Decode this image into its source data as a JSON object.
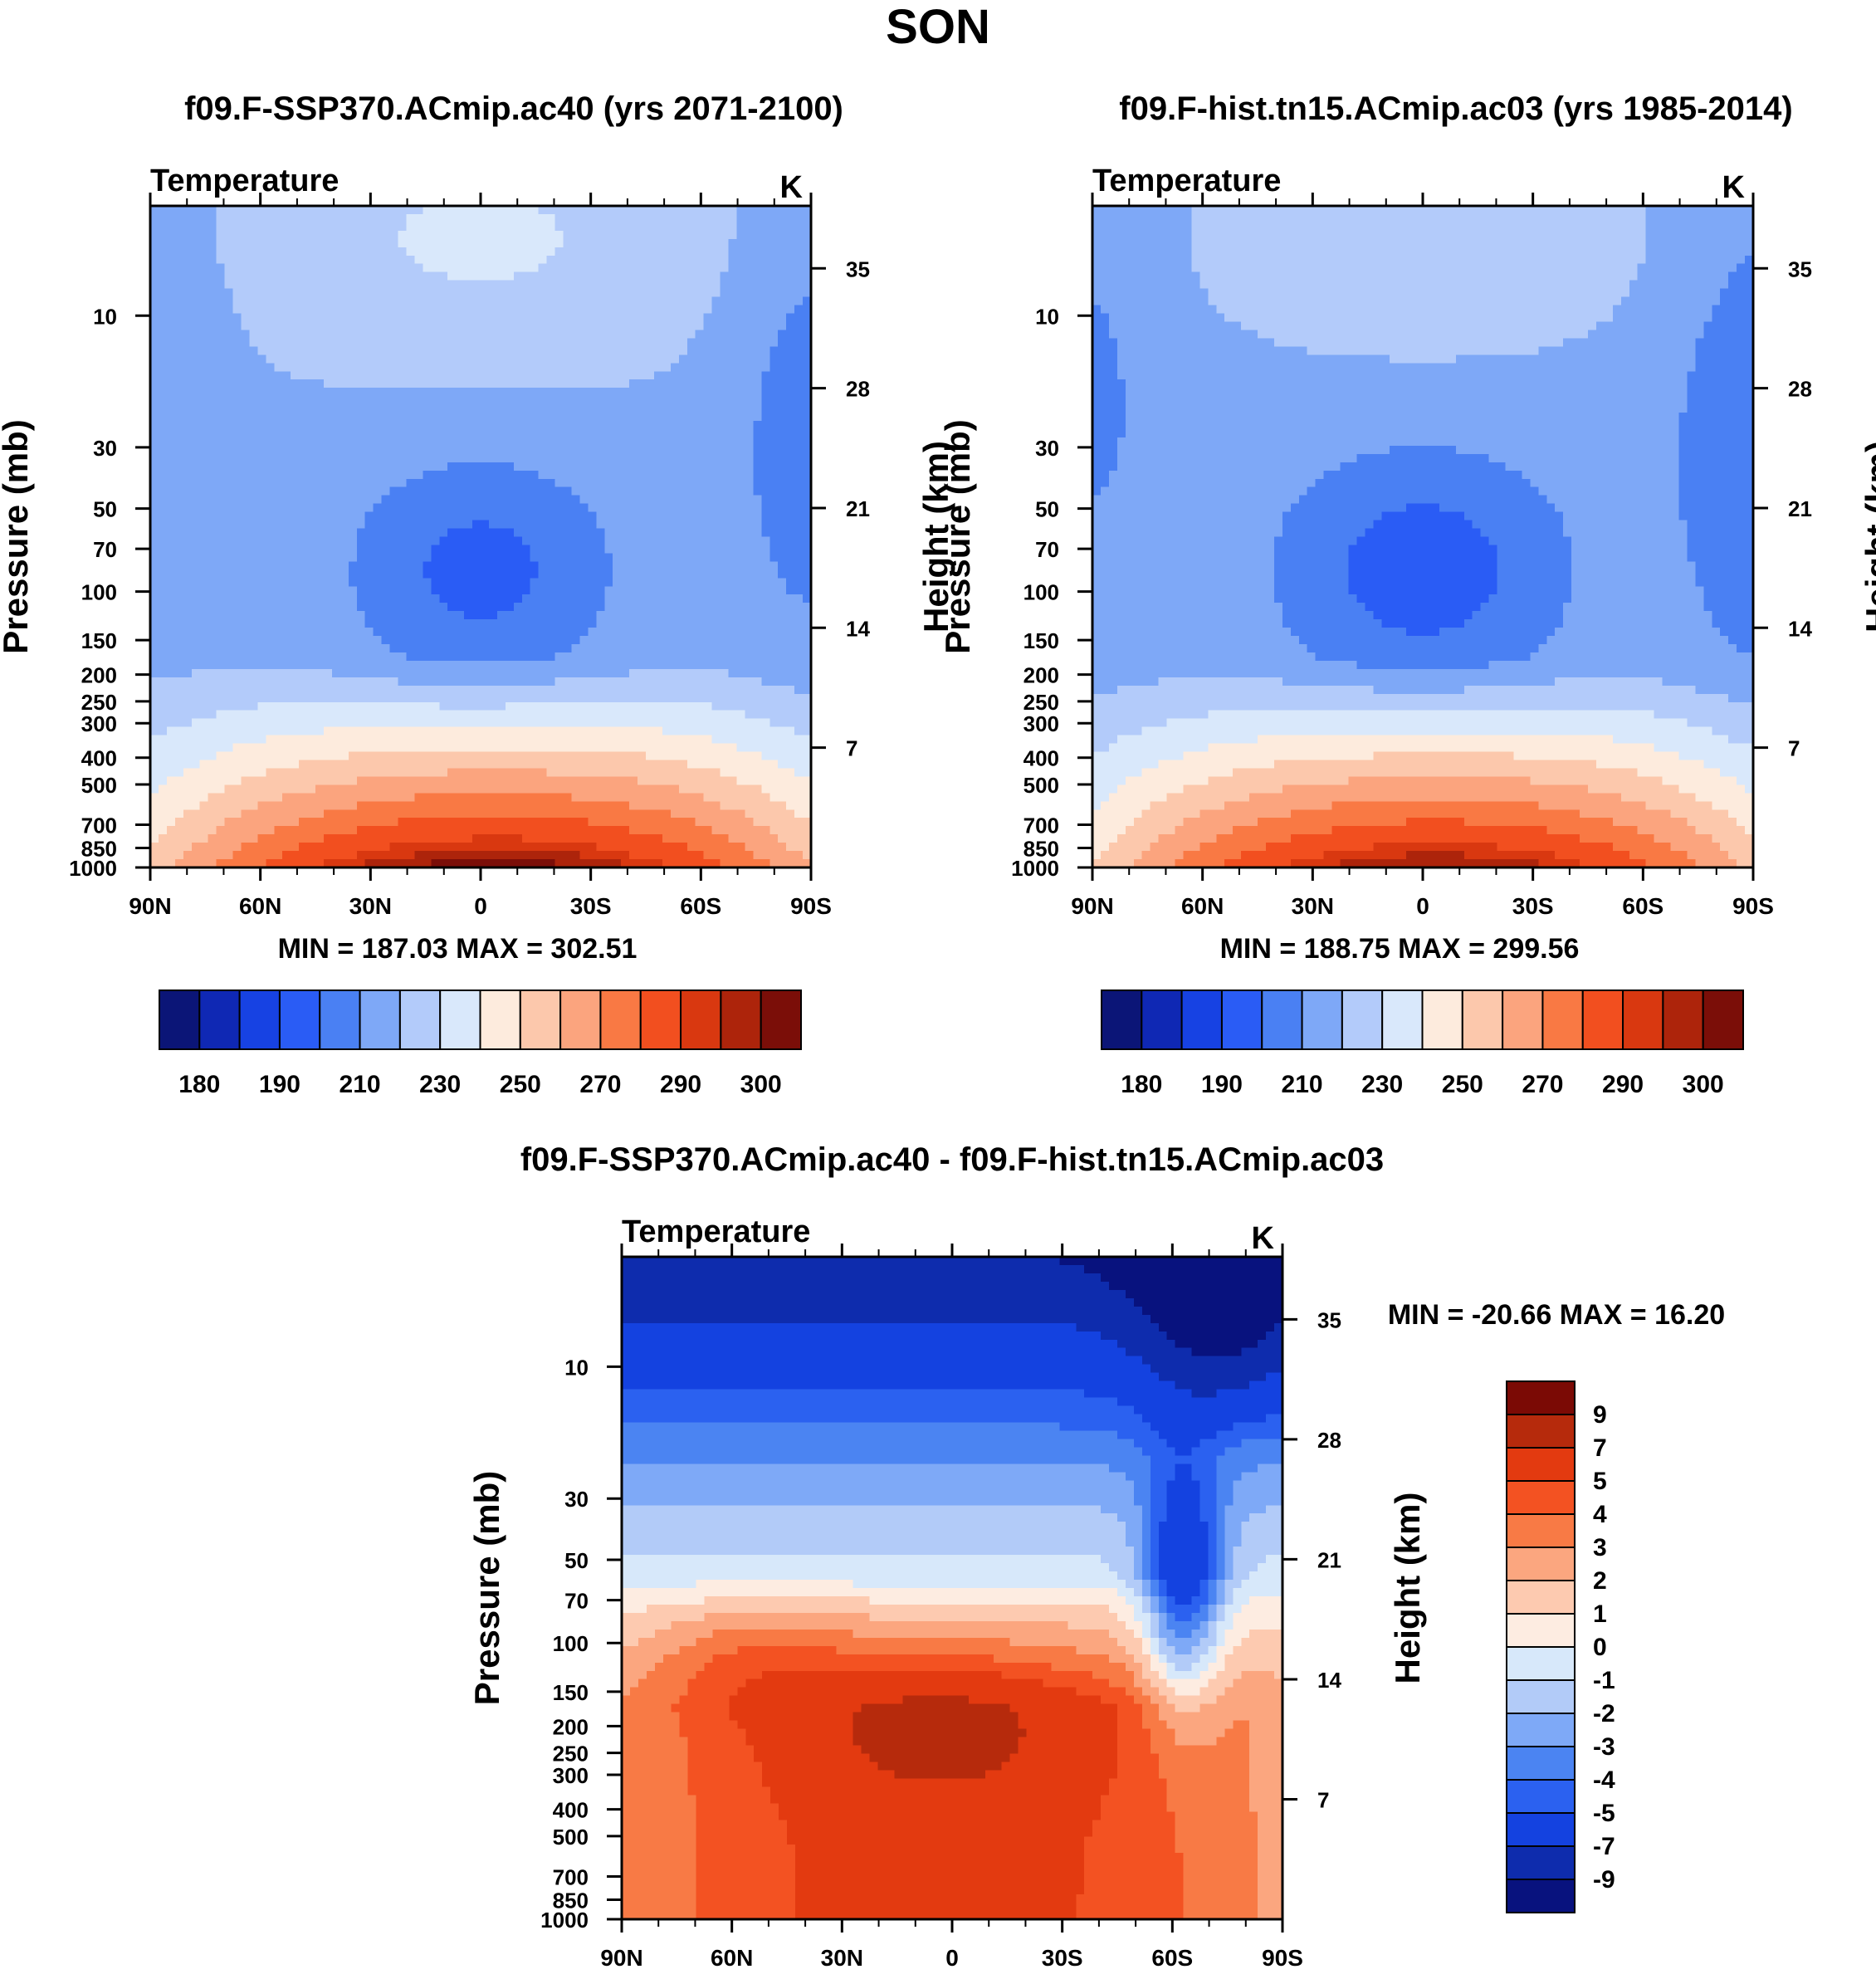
{
  "figure_title": "SON",
  "colors": {
    "abs_levels": [
      "#0b1577",
      "#0f28b4",
      "#1742e3",
      "#2a5cf5",
      "#4a80f3",
      "#7ea8f7",
      "#b3cbfa",
      "#d9e8fb",
      "#fdebdd",
      "#fcc8ac",
      "#fba47e",
      "#f97944",
      "#f24f1f",
      "#d93810",
      "#ad240b",
      "#7b0e08"
    ],
    "diff_levels": [
      "#08127e",
      "#0e2cad",
      "#1442e0",
      "#2b61f0",
      "#4b84f2",
      "#7ea9f7",
      "#b2cbf8",
      "#d7e8fa",
      "#fdece1",
      "#fdcab0",
      "#fba67f",
      "#f87a45",
      "#f35222",
      "#e33a10",
      "#b62a0c",
      "#7b0a05"
    ]
  },
  "chart_data": [
    {
      "id": "left",
      "type": "contour",
      "title": "f09.F-SSP370.ACmip.ac40 (yrs 2071-2100)",
      "variable": "Temperature",
      "units": "K",
      "ylabel": "Pressure (mb)",
      "y2label": "Height (km)",
      "x_ticks": [
        "90N",
        "60N",
        "30N",
        "0",
        "30S",
        "60S",
        "90S"
      ],
      "xlim": [
        90,
        -90
      ],
      "y_ticks": [
        10,
        30,
        50,
        70,
        100,
        150,
        200,
        250,
        300,
        400,
        500,
        700,
        850,
        1000
      ],
      "ylim_mb": [
        4,
        1000
      ],
      "height_ticks_km": [
        35,
        28,
        21,
        14,
        7
      ],
      "stats": "MIN = 187.03  MAX = 302.51",
      "min": 187.03,
      "max": 302.51,
      "colorbar_labels": [
        "180",
        "190",
        "210",
        "230",
        "250",
        "270",
        "290",
        "300"
      ]
    },
    {
      "id": "right",
      "type": "contour",
      "title": "f09.F-hist.tn15.ACmip.ac03 (yrs 1985-2014)",
      "variable": "Temperature",
      "units": "K",
      "ylabel": "Pressure (mb)",
      "y2label": "Height (km)",
      "x_ticks": [
        "90N",
        "60N",
        "30N",
        "0",
        "30S",
        "60S",
        "90S"
      ],
      "xlim": [
        90,
        -90
      ],
      "y_ticks": [
        10,
        30,
        50,
        70,
        100,
        150,
        200,
        250,
        300,
        400,
        500,
        700,
        850,
        1000
      ],
      "ylim_mb": [
        4,
        1000
      ],
      "height_ticks_km": [
        35,
        28,
        21,
        14,
        7
      ],
      "stats": "MIN = 188.75  MAX = 299.56",
      "min": 188.75,
      "max": 299.56,
      "colorbar_labels": [
        "180",
        "190",
        "210",
        "230",
        "250",
        "270",
        "290",
        "300"
      ]
    },
    {
      "id": "diff",
      "type": "contour",
      "title": "f09.F-SSP370.ACmip.ac40 - f09.F-hist.tn15.ACmip.ac03",
      "variable": "Temperature",
      "units": "K",
      "ylabel": "Pressure (mb)",
      "y2label": "Height (km)",
      "x_ticks": [
        "90N",
        "60N",
        "30N",
        "0",
        "30S",
        "60S",
        "90S"
      ],
      "xlim": [
        90,
        -90
      ],
      "y_ticks": [
        10,
        30,
        50,
        70,
        100,
        150,
        200,
        250,
        300,
        400,
        500,
        700,
        850,
        1000
      ],
      "ylim_mb": [
        4,
        1000
      ],
      "height_ticks_km": [
        35,
        28,
        21,
        14,
        7
      ],
      "stats": "MIN = -20.66  MAX =  16.20",
      "min": -20.66,
      "max": 16.2,
      "colorbar_labels": [
        "9",
        "7",
        "5",
        "4",
        "3",
        "2",
        "1",
        "0",
        "-1",
        "-2",
        "-3",
        "-4",
        "-5",
        "-7",
        "-9"
      ]
    }
  ]
}
